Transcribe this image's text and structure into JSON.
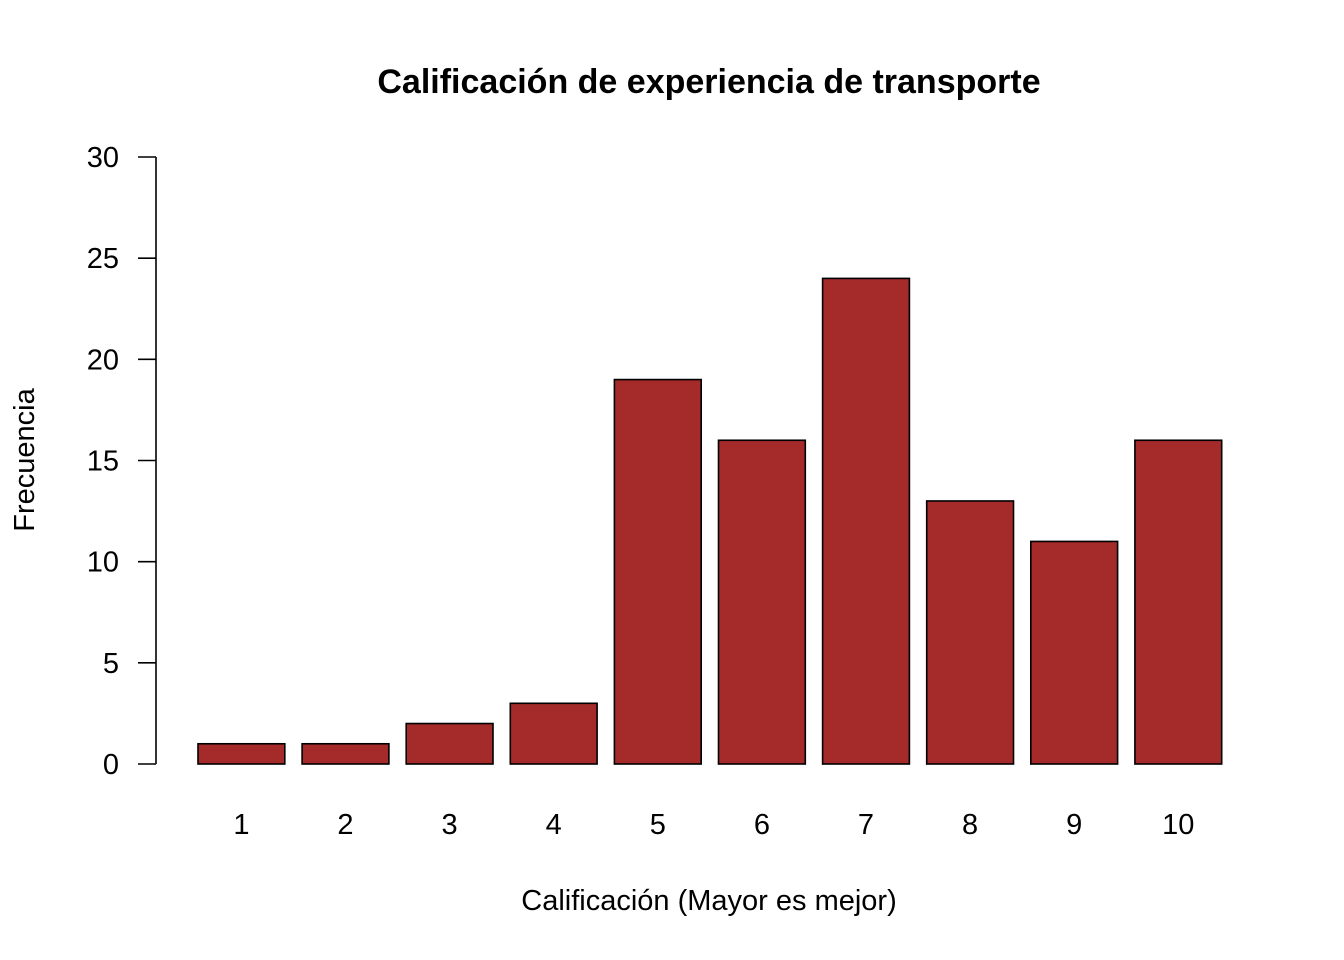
{
  "chart_data": {
    "type": "bar",
    "title": "Calificación de experiencia de transporte",
    "xlabel": "Calificación (Mayor es mejor)",
    "ylabel": "Frecuencia",
    "categories": [
      "1",
      "2",
      "3",
      "4",
      "5",
      "6",
      "7",
      "8",
      "9",
      "10"
    ],
    "values": [
      1,
      1,
      2,
      3,
      19,
      16,
      24,
      13,
      11,
      16
    ],
    "ylim": [
      0,
      30
    ],
    "yticks": [
      0,
      5,
      10,
      15,
      20,
      25,
      30
    ],
    "ytick_labels": [
      "0",
      "5",
      "10",
      "15",
      "20",
      "25",
      "30"
    ],
    "bar_color": "#a52a2a",
    "grid": false,
    "legend": "none"
  }
}
